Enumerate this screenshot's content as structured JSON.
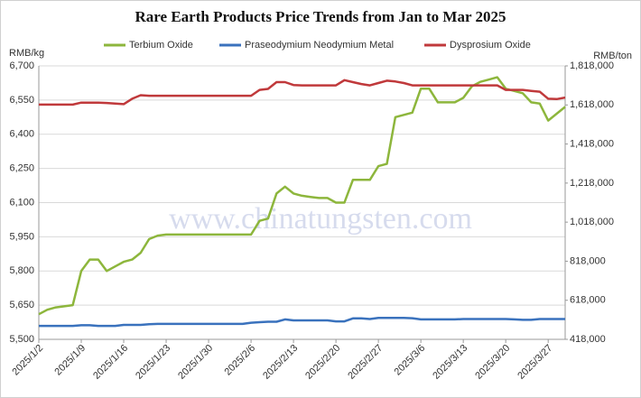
{
  "chart_data": {
    "type": "line",
    "title": "Rare Earth Products Price Trends  from Jan to Mar 2025",
    "y_label": "RMB/kg",
    "y2_label": "RMB/ton",
    "watermark": "www.chinatungsten.com",
    "categories": [
      "2025/1/2",
      null,
      null,
      null,
      null,
      "2025/1/9",
      null,
      null,
      null,
      null,
      "2025/1/16",
      null,
      null,
      null,
      null,
      "2025/1/23",
      null,
      null,
      null,
      null,
      "2025/1/30",
      null,
      null,
      null,
      null,
      "2025/2/6",
      null,
      null,
      null,
      null,
      "2025/2/13",
      null,
      null,
      null,
      null,
      "2025/2/20",
      null,
      null,
      null,
      null,
      "2025/2/27",
      null,
      null,
      null,
      null,
      "2025/3/6",
      null,
      null,
      null,
      null,
      "2025/3/13",
      null,
      null,
      null,
      null,
      "2025/3/20",
      null,
      null,
      null,
      null,
      "2025/3/27",
      null,
      null
    ],
    "ylim": [
      5500,
      6700
    ],
    "yticks": [
      {
        "value": 5500,
        "label": "5,500"
      },
      {
        "value": 5650,
        "label": "5,650"
      },
      {
        "value": 5800,
        "label": "5,800"
      },
      {
        "value": 5950,
        "label": "5,950"
      },
      {
        "value": 6100,
        "label": "6,100"
      },
      {
        "value": 6250,
        "label": "6,250"
      },
      {
        "value": 6400,
        "label": "6,400"
      },
      {
        "value": 6550,
        "label": "6,550"
      },
      {
        "value": 6700,
        "label": "6,700"
      }
    ],
    "y2lim": [
      418000,
      1818000
    ],
    "y2ticks": [
      {
        "value": 418000,
        "label": "418,000"
      },
      {
        "value": 618000,
        "label": "618,000"
      },
      {
        "value": 818000,
        "label": "818,000"
      },
      {
        "value": 1018000,
        "label": "1,018,000"
      },
      {
        "value": 1218000,
        "label": "1,218,000"
      },
      {
        "value": 1418000,
        "label": "1,418,000"
      },
      {
        "value": 1618000,
        "label": "1,618,000"
      },
      {
        "value": 1818000,
        "label": "1,818,000"
      }
    ],
    "grid": true,
    "legend": "top",
    "series": [
      {
        "name": "Terbium Oxide",
        "color": "#8db63c",
        "axis": "y",
        "values": [
          5610,
          5630,
          5640,
          5645,
          5650,
          5800,
          5850,
          5850,
          5800,
          5820,
          5840,
          5850,
          5880,
          5940,
          5955,
          5960,
          5960,
          5960,
          5960,
          5960,
          5960,
          5960,
          5960,
          5960,
          5960,
          5960,
          6020,
          6030,
          6140,
          6170,
          6140,
          6130,
          6125,
          6120,
          6120,
          6100,
          6100,
          6200,
          6200,
          6200,
          6260,
          6270,
          6475,
          6485,
          6495,
          6600,
          6600,
          6540,
          6540,
          6540,
          6560,
          6610,
          6630,
          6640,
          6650,
          6600,
          6590,
          6580,
          6540,
          6535,
          6460,
          6490,
          6520
        ]
      },
      {
        "name": "Praseodymium Neodymium Metal",
        "color": "#3a72bd",
        "axis": "y2",
        "values": [
          487000,
          487000,
          487000,
          487000,
          487000,
          490000,
          490000,
          487000,
          487000,
          487000,
          492000,
          492000,
          492000,
          495000,
          497000,
          497000,
          497000,
          497000,
          497000,
          497000,
          497000,
          497000,
          497000,
          497000,
          497000,
          503000,
          506000,
          508000,
          508000,
          520000,
          515000,
          515000,
          515000,
          515000,
          515000,
          510000,
          510000,
          525000,
          525000,
          522000,
          528000,
          528000,
          528000,
          528000,
          526000,
          520000,
          520000,
          520000,
          520000,
          520000,
          522000,
          522000,
          522000,
          522000,
          522000,
          522000,
          520000,
          518000,
          518000,
          522000,
          522000,
          522000,
          522000
        ]
      },
      {
        "name": "Dysprosium Oxide",
        "color": "#c0393b",
        "axis": "y2",
        "values": [
          1620000,
          1620000,
          1620000,
          1620000,
          1620000,
          1630000,
          1630000,
          1630000,
          1628000,
          1625000,
          1622000,
          1650000,
          1668000,
          1665000,
          1665000,
          1665000,
          1665000,
          1665000,
          1665000,
          1665000,
          1665000,
          1665000,
          1665000,
          1665000,
          1665000,
          1665000,
          1695000,
          1700000,
          1735000,
          1735000,
          1720000,
          1718000,
          1718000,
          1718000,
          1718000,
          1718000,
          1745000,
          1735000,
          1725000,
          1718000,
          1730000,
          1742000,
          1738000,
          1730000,
          1718000,
          1718000,
          1718000,
          1718000,
          1718000,
          1718000,
          1718000,
          1718000,
          1718000,
          1718000,
          1718000,
          1695000,
          1695000,
          1695000,
          1690000,
          1686000,
          1650000,
          1648000,
          1656000
        ]
      }
    ]
  }
}
